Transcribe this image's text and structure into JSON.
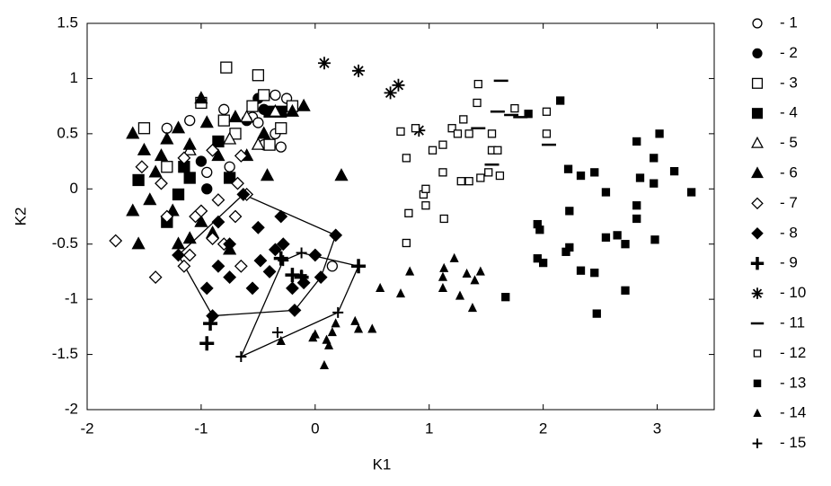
{
  "chart_data": {
    "type": "scatter",
    "x_label": "K1",
    "y_label": "K2",
    "xlim": [
      -2,
      3.5
    ],
    "ylim": [
      -2,
      1.5
    ],
    "xticks": [
      -2,
      -1,
      0,
      1,
      2,
      3
    ],
    "yticks": [
      -2,
      -1.5,
      -1,
      -0.5,
      0,
      0.5,
      1,
      1.5
    ],
    "legend": "right",
    "series": [
      {
        "name": "- 1",
        "marker": "circle",
        "filled": false,
        "color": "#000000",
        "x": [
          -1.1,
          -0.8,
          -0.55,
          -0.35,
          -0.25,
          -0.5,
          -0.95,
          -1.3,
          -0.45,
          -0.3,
          0.15,
          -0.75,
          -0.35
        ],
        "values": [
          0.62,
          0.72,
          0.65,
          0.5,
          0.82,
          0.6,
          0.15,
          0.55,
          0.4,
          0.38,
          -0.7,
          0.2,
          0.85
        ]
      },
      {
        "name": "- 2",
        "marker": "circle",
        "filled": true,
        "color": "#000000",
        "x": [
          -0.5,
          -0.35,
          -0.45,
          -1.0,
          -0.95,
          -0.6,
          -0.3
        ],
        "values": [
          0.82,
          0.7,
          0.72,
          0.25,
          0.0,
          0.62,
          0.7
        ]
      },
      {
        "name": "- 3",
        "marker": "square",
        "filled": false,
        "color": "#000000",
        "x": [
          -0.78,
          -0.5,
          -1.5,
          -1.3,
          -1.0,
          -0.8,
          -0.55,
          -0.3,
          -0.45,
          -0.2,
          -0.7,
          -0.4
        ],
        "values": [
          1.1,
          1.03,
          0.55,
          0.2,
          0.78,
          0.62,
          0.75,
          0.55,
          0.85,
          0.75,
          0.5,
          0.4
        ]
      },
      {
        "name": "- 4",
        "marker": "square",
        "filled": true,
        "color": "#000000",
        "x": [
          -1.55,
          -1.3,
          -1.2,
          -1.1,
          -0.85,
          -0.4,
          -0.3,
          -0.75,
          -1.15
        ],
        "values": [
          0.08,
          -0.3,
          -0.05,
          0.1,
          0.43,
          0.7,
          0.7,
          0.1,
          0.2
        ]
      },
      {
        "name": "- 5",
        "marker": "triangle",
        "filled": false,
        "color": "#000000",
        "x": [
          -0.75,
          -0.5,
          -0.35,
          -0.6,
          -1.1
        ],
        "values": [
          0.45,
          0.4,
          0.7,
          0.65,
          0.35
        ]
      },
      {
        "name": "- 6",
        "marker": "triangle",
        "filled": true,
        "color": "#000000",
        "x": [
          -1.6,
          -1.55,
          -1.45,
          -1.35,
          -1.3,
          -1.2,
          -1.0,
          -0.95,
          -1.1,
          -1.25,
          -1.2,
          -1.0,
          -0.85,
          -0.7,
          -0.45,
          -0.2,
          -0.1,
          -0.42,
          0.23,
          -1.4,
          -1.6,
          -0.9,
          -0.75,
          -1.5,
          -1.1,
          -0.6
        ],
        "values": [
          0.5,
          -0.5,
          -0.1,
          0.3,
          0.45,
          0.55,
          0.82,
          0.6,
          0.4,
          -0.2,
          -0.5,
          -0.3,
          0.3,
          0.65,
          0.5,
          0.7,
          0.75,
          0.12,
          0.12,
          0.15,
          -0.2,
          -0.4,
          -0.55,
          0.35,
          -0.45,
          0.3
        ]
      },
      {
        "name": "- 7",
        "marker": "diamond",
        "filled": false,
        "color": "#000000",
        "x": [
          -1.75,
          -1.4,
          -1.15,
          -1.1,
          -1.05,
          -0.9,
          -0.85,
          -0.7,
          -0.68,
          -0.9,
          -1.35,
          -1.52,
          -0.65,
          -1.0,
          -0.8,
          -1.3,
          -0.6,
          -1.15,
          -0.65
        ],
        "values": [
          -0.47,
          -0.8,
          -0.7,
          -0.6,
          -0.25,
          -0.45,
          -0.1,
          -0.25,
          0.05,
          0.35,
          0.05,
          0.2,
          0.3,
          -0.2,
          -0.5,
          -0.25,
          -0.05,
          0.28,
          -0.7
        ]
      },
      {
        "name": "- 8",
        "marker": "diamond",
        "filled": true,
        "hull": true,
        "color": "#000000",
        "x": [
          -0.63,
          -0.5,
          -0.48,
          -0.3,
          -0.4,
          -0.28,
          -0.2,
          -0.1,
          0.18,
          0.05,
          -0.18,
          -0.9,
          -0.95,
          -0.85,
          -0.75,
          -0.55,
          -0.75,
          -1.2,
          -0.85,
          0.0,
          -0.35
        ],
        "values": [
          -0.05,
          -0.35,
          -0.65,
          -0.25,
          -0.75,
          -0.5,
          -0.9,
          -0.85,
          -0.42,
          -0.8,
          -1.1,
          -1.15,
          -0.9,
          -0.7,
          -0.8,
          -0.9,
          -0.5,
          -0.6,
          -0.3,
          -0.6,
          -0.55
        ]
      },
      {
        "name": "- 9",
        "marker": "bigplus",
        "filled": true,
        "color": "#000000",
        "x": [
          -0.95,
          -0.92,
          -0.3,
          -0.2,
          -0.12,
          0.38
        ],
        "values": [
          -1.4,
          -1.22,
          -0.63,
          -0.78,
          -0.8,
          -0.7
        ]
      },
      {
        "name": "- 10",
        "marker": "asterisk",
        "filled": true,
        "color": "#000000",
        "x": [
          0.08,
          0.38,
          0.66,
          0.73,
          0.91
        ],
        "values": [
          1.14,
          1.07,
          0.87,
          0.94,
          0.53
        ]
      },
      {
        "name": "- 11",
        "marker": "dash",
        "filled": true,
        "color": "#000000",
        "x": [
          1.63,
          1.6,
          1.72,
          1.8,
          1.55,
          2.05,
          1.43
        ],
        "values": [
          0.98,
          0.7,
          0.67,
          0.65,
          0.22,
          0.4,
          0.55
        ]
      },
      {
        "name": "- 12",
        "marker": "smallsquare",
        "filled": false,
        "color": "#000000",
        "x": [
          0.8,
          0.75,
          0.88,
          0.82,
          0.95,
          0.97,
          0.97,
          1.03,
          1.12,
          1.13,
          1.12,
          1.2,
          1.25,
          1.3,
          1.35,
          1.28,
          1.35,
          1.42,
          1.43,
          1.45,
          1.55,
          1.55,
          1.62,
          1.75,
          2.03,
          2.03,
          0.8,
          1.52,
          1.6
        ],
        "values": [
          0.28,
          0.52,
          0.55,
          -0.22,
          -0.05,
          0.0,
          -0.15,
          0.35,
          0.4,
          -0.27,
          0.15,
          0.55,
          0.5,
          0.63,
          0.5,
          0.07,
          0.07,
          0.78,
          0.95,
          0.1,
          0.5,
          0.35,
          0.12,
          0.73,
          0.5,
          0.7,
          -0.49,
          0.15,
          0.35
        ]
      },
      {
        "name": "- 13",
        "marker": "smallsquare",
        "filled": true,
        "color": "#000000",
        "x": [
          1.87,
          2.15,
          1.67,
          1.95,
          1.97,
          1.95,
          2.0,
          2.22,
          2.33,
          2.45,
          2.23,
          2.2,
          2.23,
          2.33,
          2.45,
          2.55,
          2.55,
          2.65,
          2.72,
          2.72,
          2.47,
          2.82,
          2.82,
          2.82,
          2.85,
          2.97,
          2.97,
          3.02,
          2.98,
          3.15,
          3.3
        ],
        "values": [
          0.68,
          0.8,
          -0.98,
          -0.32,
          -0.37,
          -0.63,
          -0.67,
          0.18,
          0.12,
          0.15,
          -0.2,
          -0.57,
          -0.53,
          -0.74,
          -0.76,
          -0.03,
          -0.44,
          -0.42,
          -0.5,
          -0.92,
          -1.13,
          0.43,
          -0.15,
          -0.27,
          0.1,
          0.28,
          0.05,
          0.5,
          -0.46,
          0.16,
          -0.03
        ]
      },
      {
        "name": "- 14",
        "marker": "smalltriangle",
        "filled": true,
        "color": "#000000",
        "x": [
          0.57,
          0.75,
          0.83,
          1.13,
          1.12,
          1.12,
          1.22,
          1.27,
          1.33,
          1.38,
          1.4,
          0.08,
          0.1,
          0.12,
          0.18,
          0.0,
          -0.02,
          0.35,
          0.38,
          0.5,
          -0.3,
          0.15,
          1.45
        ],
        "values": [
          -0.9,
          -0.95,
          -0.75,
          -0.72,
          -0.8,
          -0.9,
          -0.63,
          -0.97,
          -0.77,
          -1.08,
          -0.83,
          -1.6,
          -1.37,
          -1.42,
          -1.22,
          -1.32,
          -1.35,
          -1.2,
          -1.27,
          -1.27,
          -1.38,
          -1.3,
          -0.75
        ]
      },
      {
        "name": "- 15",
        "marker": "plus",
        "filled": true,
        "hull": true,
        "color": "#000000",
        "x": [
          -0.65,
          -0.33,
          -0.28,
          -0.12,
          0.2,
          0.38,
          -0.12
        ],
        "values": [
          -1.52,
          -1.3,
          -0.65,
          -0.78,
          -1.12,
          -0.7,
          -0.58
        ]
      }
    ]
  }
}
